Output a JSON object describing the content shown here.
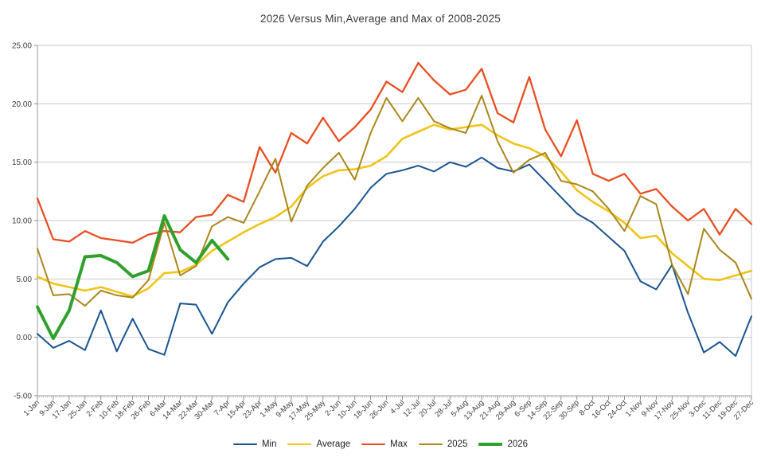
{
  "chart_data": {
    "type": "line",
    "title": "2026 Versus Min,Average and Max of 2008-2025",
    "xlabel": "",
    "ylabel": "",
    "ylim": [
      -5,
      25
    ],
    "y_ticks": [
      {
        "value": 25,
        "label": "25.00"
      },
      {
        "value": 20,
        "label": "20.00"
      },
      {
        "value": 15,
        "label": "15.00"
      },
      {
        "value": 10,
        "label": "10.00"
      },
      {
        "value": 5,
        "label": "5.00"
      },
      {
        "value": 0,
        "label": "0.00"
      },
      {
        "value": -5,
        "label": "-5.00"
      }
    ],
    "grid": true,
    "legend_position": "bottom",
    "categories": [
      "1-Jan",
      "9-Jan",
      "17-Jan",
      "25-Jan",
      "2-Feb",
      "10-Feb",
      "18-Feb",
      "26-Feb",
      "6-Mar",
      "14-Mar",
      "22-Mar",
      "30-Mar",
      "7-Apr",
      "15-Apr",
      "23-Apr",
      "1-May",
      "9-May",
      "17-May",
      "25-May",
      "2-Jun",
      "10-Jun",
      "18-Jun",
      "26-Jun",
      "4-Jul",
      "12-Jul",
      "20-Jul",
      "28-Jul",
      "5-Aug",
      "13-Aug",
      "21-Aug",
      "29-Aug",
      "6-Sep",
      "14-Sep",
      "22-Sep",
      "30-Sep",
      "8-Oct",
      "16-Oct",
      "24-Oct",
      "1-Nov",
      "9-Nov",
      "17-Nov",
      "25-Nov",
      "3-Dec",
      "11-Dec",
      "19-Dec",
      "27-Dec"
    ],
    "sample_interval_days": 8,
    "series": [
      {
        "name": "Min",
        "color": "#1a5490",
        "line_width": 2,
        "values": [
          0.3,
          -0.9,
          -0.3,
          -1.1,
          2.3,
          -1.2,
          1.6,
          -1.0,
          -1.5,
          2.9,
          2.8,
          0.3,
          3.0,
          4.6,
          6.0,
          6.7,
          6.8,
          6.1,
          8.2,
          9.5,
          11.0,
          12.8,
          14.0,
          14.3,
          14.7,
          14.2,
          15.0,
          14.6,
          15.4,
          14.5,
          14.2,
          14.8,
          13.4,
          12.0,
          10.6,
          9.8,
          8.6,
          7.4,
          4.8,
          4.1,
          6.2,
          2.1,
          -1.3,
          -0.4,
          -1.6,
          1.8
        ]
      },
      {
        "name": "Average",
        "color": "#f0c419",
        "line_width": 2.6,
        "values": [
          5.2,
          4.6,
          4.3,
          4.0,
          4.3,
          3.9,
          3.5,
          4.2,
          5.5,
          5.6,
          6.2,
          7.4,
          8.2,
          9.0,
          9.7,
          10.3,
          11.2,
          12.8,
          13.8,
          14.3,
          14.4,
          14.7,
          15.5,
          17.0,
          17.6,
          18.2,
          17.8,
          18.0,
          18.2,
          17.3,
          16.6,
          16.2,
          15.5,
          14.2,
          12.6,
          11.6,
          10.8,
          9.8,
          8.5,
          8.7,
          7.2,
          6.1,
          5.0,
          4.9,
          5.3,
          5.7
        ]
      },
      {
        "name": "Max",
        "color": "#e84e22",
        "line_width": 2.3,
        "values": [
          11.9,
          8.4,
          8.2,
          9.1,
          8.5,
          8.3,
          8.1,
          8.8,
          9.1,
          9.0,
          10.3,
          10.5,
          12.2,
          11.6,
          16.3,
          14.1,
          17.5,
          16.6,
          18.8,
          16.8,
          18.0,
          19.5,
          21.9,
          21.0,
          23.5,
          22.0,
          20.8,
          21.2,
          23.0,
          19.2,
          18.4,
          22.3,
          17.8,
          15.5,
          18.6,
          14.0,
          13.4,
          14.0,
          12.3,
          12.7,
          11.2,
          10.0,
          11.0,
          8.8,
          11.0,
          9.7
        ]
      },
      {
        "name": "2025",
        "color": "#a9871b",
        "line_width": 2,
        "values": [
          7.6,
          3.6,
          3.7,
          2.7,
          4.0,
          3.6,
          3.4,
          4.9,
          9.8,
          5.3,
          6.1,
          9.5,
          10.3,
          9.8,
          12.5,
          15.3,
          9.9,
          13.0,
          14.5,
          15.8,
          13.5,
          17.5,
          20.5,
          18.5,
          20.5,
          18.5,
          17.9,
          17.5,
          20.7,
          16.8,
          14.1,
          15.2,
          15.8,
          13.4,
          13.1,
          12.5,
          11.0,
          9.1,
          12.1,
          11.4,
          6.2,
          3.7,
          9.3,
          7.5,
          6.4,
          3.3
        ]
      },
      {
        "name": "2026",
        "color": "#2fa02c",
        "line_width": 4,
        "values": [
          2.6,
          -0.1,
          2.3,
          6.9,
          7.0,
          6.4,
          5.2,
          5.7,
          10.4,
          7.5,
          6.4,
          8.3,
          6.7
        ]
      }
    ]
  }
}
